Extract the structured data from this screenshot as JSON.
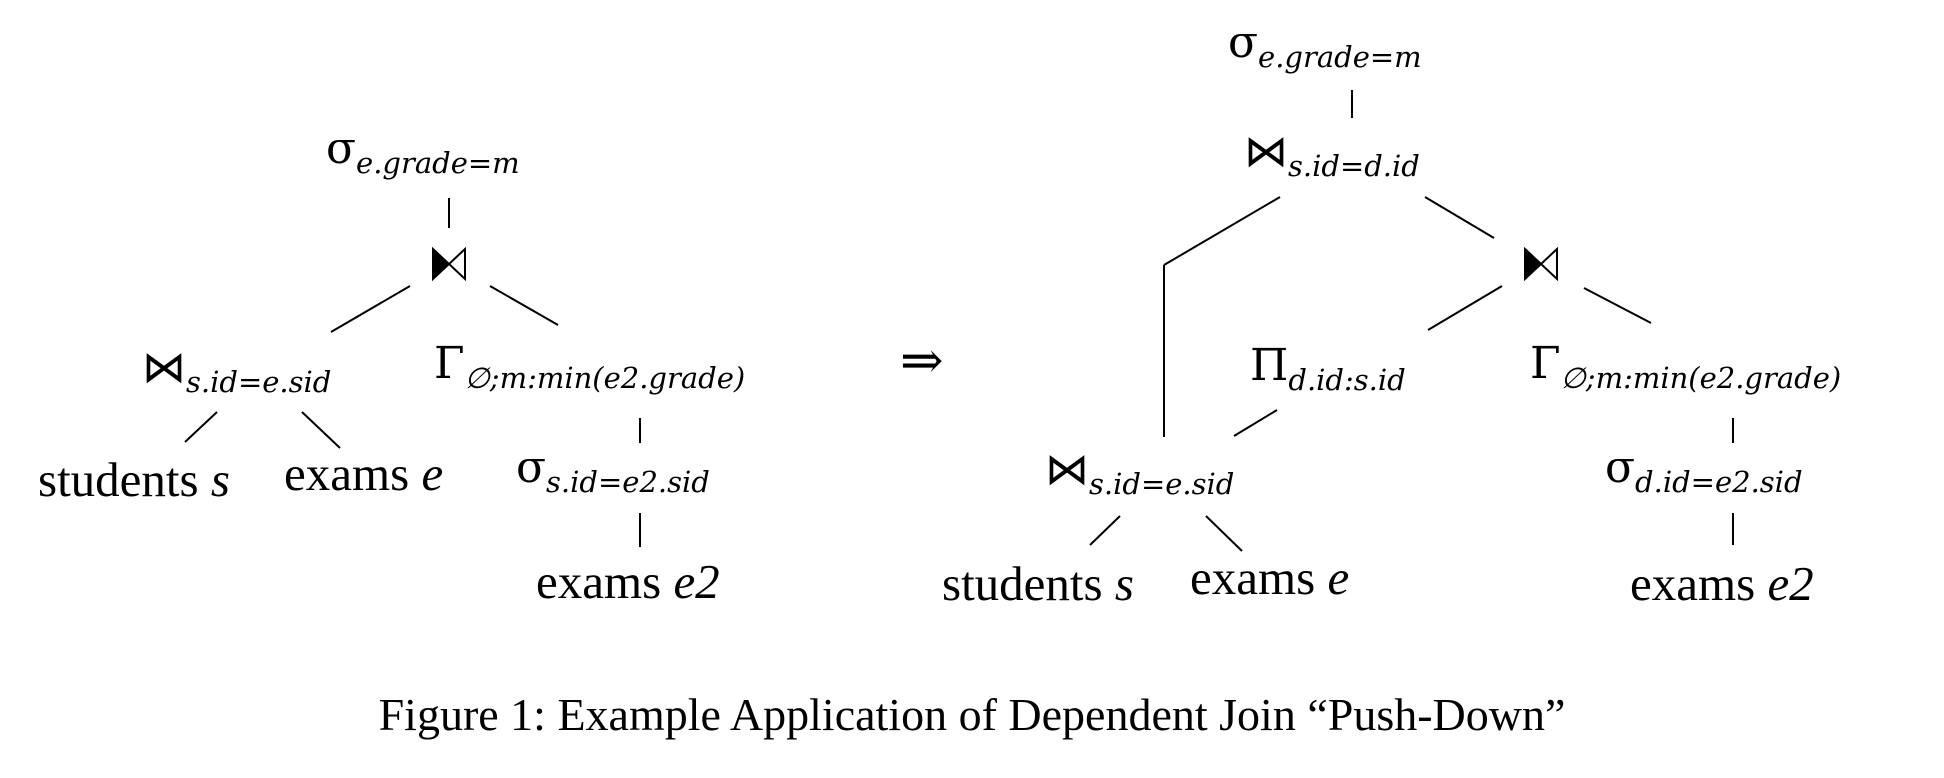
{
  "caption": "Figure 1: Example Application of Dependent Join “Push-Down”",
  "arrow": "⇒",
  "left_tree": {
    "select_top": {
      "sym": "σ",
      "sub": "e.grade=m"
    },
    "dep_join": {
      "sym": "⋈"
    },
    "join": {
      "sym": "⋈",
      "sub": "s.id=e.sid"
    },
    "agg": {
      "sym": "Γ",
      "sub": "∅;m:min(e2.grade)"
    },
    "select_inner": {
      "sym": "σ",
      "sub": "s.id=e2.sid"
    },
    "students": {
      "name": "students",
      "var": "s"
    },
    "exams": {
      "name": "exams",
      "var": "e"
    },
    "exams2": {
      "name": "exams",
      "var": "e2"
    }
  },
  "right_tree": {
    "select_top": {
      "sym": "σ",
      "sub": "e.grade=m"
    },
    "join_top": {
      "sym": "⋈",
      "sub": "s.id=d.id"
    },
    "dep_join": {
      "sym": "⋈"
    },
    "proj": {
      "sym": "Π",
      "sub": "d.id:s.id"
    },
    "agg": {
      "sym": "Γ",
      "sub": "∅;m:min(e2.grade)"
    },
    "join": {
      "sym": "⋈",
      "sub": "s.id=e.sid"
    },
    "select_inner": {
      "sym": "σ",
      "sub": "d.id=e2.sid"
    },
    "students": {
      "name": "students",
      "var": "s"
    },
    "exams": {
      "name": "exams",
      "var": "e"
    },
    "exams2": {
      "name": "exams",
      "var": "e2"
    }
  }
}
